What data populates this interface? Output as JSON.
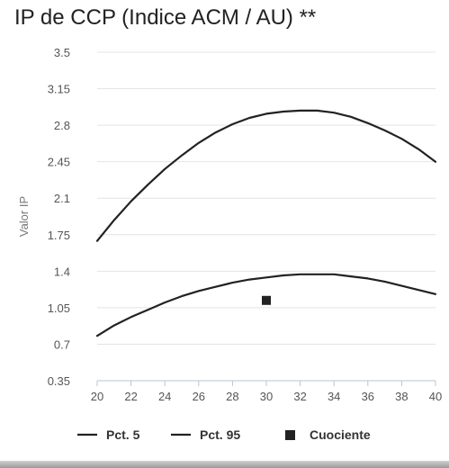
{
  "chart_data": {
    "type": "line",
    "title": "IP de CCP (Indice ACM / AU) **",
    "ylabel": "Valor IP",
    "xlabel": "",
    "xlim": [
      20,
      40
    ],
    "ylim": [
      0.35,
      3.5
    ],
    "x_ticks": [
      "20",
      "22",
      "24",
      "26",
      "28",
      "30",
      "32",
      "34",
      "36",
      "38",
      "40"
    ],
    "y_ticks": [
      "3.5",
      "3.15",
      "2.8",
      "2.45",
      "2.1",
      "1.75",
      "1.4",
      "1.05",
      "0.7",
      "0.35"
    ],
    "grid": "horizontal",
    "legend_position": "bottom",
    "series": [
      {
        "name": "Pct. 5",
        "type": "line",
        "color": "#222222",
        "x": [
          20,
          21,
          22,
          23,
          24,
          25,
          26,
          27,
          28,
          29,
          30,
          31,
          32,
          33,
          34,
          35,
          36,
          37,
          38,
          39,
          40
        ],
        "values": [
          0.78,
          0.88,
          0.96,
          1.03,
          1.1,
          1.16,
          1.21,
          1.25,
          1.29,
          1.32,
          1.34,
          1.36,
          1.37,
          1.37,
          1.37,
          1.35,
          1.33,
          1.3,
          1.26,
          1.22,
          1.18
        ]
      },
      {
        "name": "Pct. 95",
        "type": "line",
        "color": "#222222",
        "x": [
          20,
          21,
          22,
          23,
          24,
          25,
          26,
          27,
          28,
          29,
          30,
          31,
          32,
          33,
          34,
          35,
          36,
          37,
          38,
          39,
          40
        ],
        "values": [
          1.69,
          1.89,
          2.07,
          2.23,
          2.38,
          2.51,
          2.63,
          2.73,
          2.81,
          2.87,
          2.91,
          2.93,
          2.94,
          2.94,
          2.92,
          2.88,
          2.82,
          2.75,
          2.67,
          2.57,
          2.45
        ]
      },
      {
        "name": "Cuociente",
        "type": "scatter",
        "marker": "square",
        "color": "#222222",
        "x": [
          30
        ],
        "values": [
          1.12
        ]
      }
    ]
  }
}
